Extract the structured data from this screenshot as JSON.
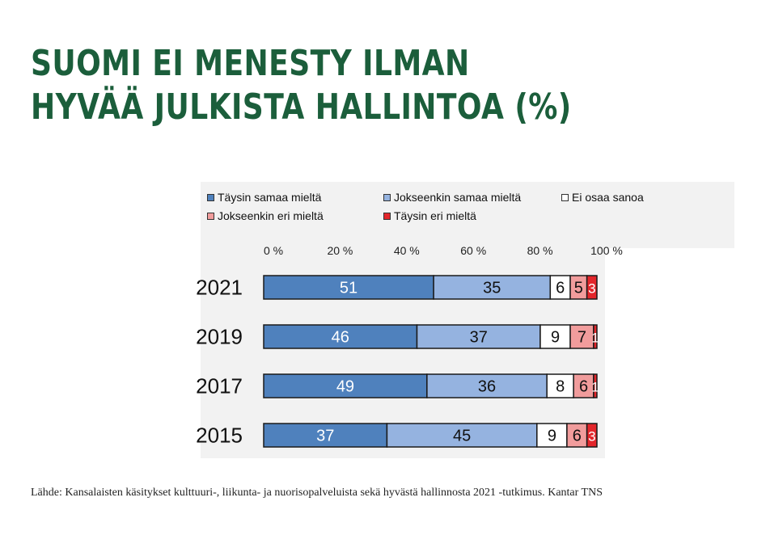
{
  "headline": {
    "line1": "SUOMI EI MENESTY ILMAN",
    "line2": "HYVÄÄ JULKISTA HALLINTOA (%)"
  },
  "source": "Lähde: Kansalaisten käsitykset kulttuuri-, liikunta- ja nuorisopalveluista sekä hyvästä hallinnosta 2021 -tutkimus. Kantar TNS",
  "chart_data": {
    "type": "bar",
    "orientation": "horizontal",
    "stacked": true,
    "x_tick_labels": [
      "0 %",
      "20 %",
      "40 %",
      "60 %",
      "80 %",
      "100 %"
    ],
    "xlim": [
      0,
      100
    ],
    "legend_position": "top",
    "categories": [
      "2021",
      "2019",
      "2017",
      "2015"
    ],
    "series": [
      {
        "name": "Täysin samaa mieltä",
        "color": "#4f81bd",
        "label_color": "#ffffff",
        "values": [
          51,
          46,
          49,
          37
        ]
      },
      {
        "name": "Jokseenkin samaa mieltä",
        "color": "#95b3e0",
        "label_color": "#111111",
        "values": [
          35,
          37,
          36,
          45
        ]
      },
      {
        "name": "Ei osaa sanoa",
        "color": "#ffffff",
        "label_color": "#111111",
        "values": [
          6,
          9,
          8,
          9
        ]
      },
      {
        "name": "Jokseenkin eri mieltä",
        "color": "#f19c9c",
        "label_color": "#111111",
        "values": [
          5,
          7,
          6,
          6
        ]
      },
      {
        "name": "Täysin eri mieltä",
        "color": "#e3262b",
        "label_color": "#ffffff",
        "values": [
          3,
          1,
          1,
          3
        ]
      }
    ]
  }
}
